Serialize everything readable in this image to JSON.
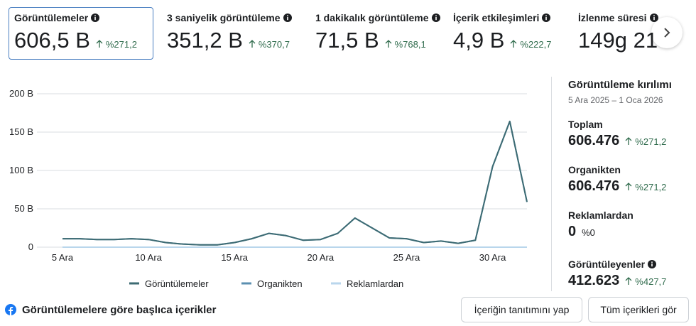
{
  "metrics": [
    {
      "label": "Görüntülemeler",
      "value": "606,5 B",
      "change": "%271,2"
    },
    {
      "label": "3 saniyelik görüntüleme",
      "value": "351,2 B",
      "change": "%370,7"
    },
    {
      "label": "1 dakikalık görüntüleme",
      "value": "71,5 B",
      "change": "%768,1"
    },
    {
      "label": "İçerik etkileşimleri",
      "value": "4,9 B",
      "change": "%222,7"
    },
    {
      "label": "İzlenme süresi",
      "value": "149g 21"
    }
  ],
  "chart_data": {
    "type": "line",
    "categories": [
      "5 Ara",
      null,
      null,
      null,
      null,
      "10 Ara",
      null,
      null,
      null,
      null,
      "15 Ara",
      null,
      null,
      null,
      null,
      "20 Ara",
      null,
      null,
      null,
      null,
      "25 Ara",
      null,
      null,
      null,
      null,
      "30 Ara",
      null,
      null
    ],
    "series": [
      {
        "name": "Görüntülemeler",
        "color": "#3d6b73",
        "values": [
          11,
          11,
          10,
          10,
          11,
          10,
          6,
          4,
          3,
          3,
          6,
          11,
          18,
          15,
          9,
          10,
          18,
          38,
          25,
          12,
          11,
          6,
          8,
          5,
          9,
          105,
          164,
          59
        ]
      },
      {
        "name": "Organikten",
        "color": "#5b8fb0",
        "values": [
          11,
          11,
          10,
          10,
          11,
          10,
          6,
          4,
          3,
          3,
          6,
          11,
          18,
          15,
          9,
          10,
          18,
          38,
          25,
          12,
          11,
          6,
          8,
          5,
          9,
          105,
          164,
          59
        ]
      },
      {
        "name": "Reklamlardan",
        "color": "#b9d6ec",
        "values": [
          0,
          0,
          0,
          0,
          0,
          0,
          0,
          0,
          0,
          0,
          0,
          0,
          0,
          0,
          0,
          0,
          0,
          0,
          0,
          0,
          0,
          0,
          0,
          0,
          0,
          0,
          0,
          0
        ]
      }
    ],
    "ylim": [
      0,
      200
    ],
    "yticks": [
      0,
      {
        "value": 50,
        "label": "50 B"
      },
      {
        "value": 100,
        "label": "100 B"
      },
      {
        "value": 150,
        "label": "150 B"
      },
      {
        "value": 200,
        "label": "200 B"
      }
    ],
    "grid": true
  },
  "breakdown": {
    "title": "Görüntüleme kırılımı",
    "period": "5 Ara 2025 – 1 Oca 2026",
    "items": [
      {
        "label": "Toplam",
        "value": "606.476",
        "change": "%271,2"
      },
      {
        "label": "Organikten",
        "value": "606.476",
        "change": "%271,2"
      },
      {
        "label": "Reklamlardan",
        "value": "0",
        "change": "%0"
      },
      {
        "label": "Görüntüleyenler",
        "value": "412.623",
        "change": "%427,7"
      }
    ]
  },
  "footer": {
    "title": "Görüntülemelere göre başlıca içerikler",
    "buttons": [
      "İçeriğin tanıtımını yap",
      "Tüm içerikleri gör"
    ]
  }
}
